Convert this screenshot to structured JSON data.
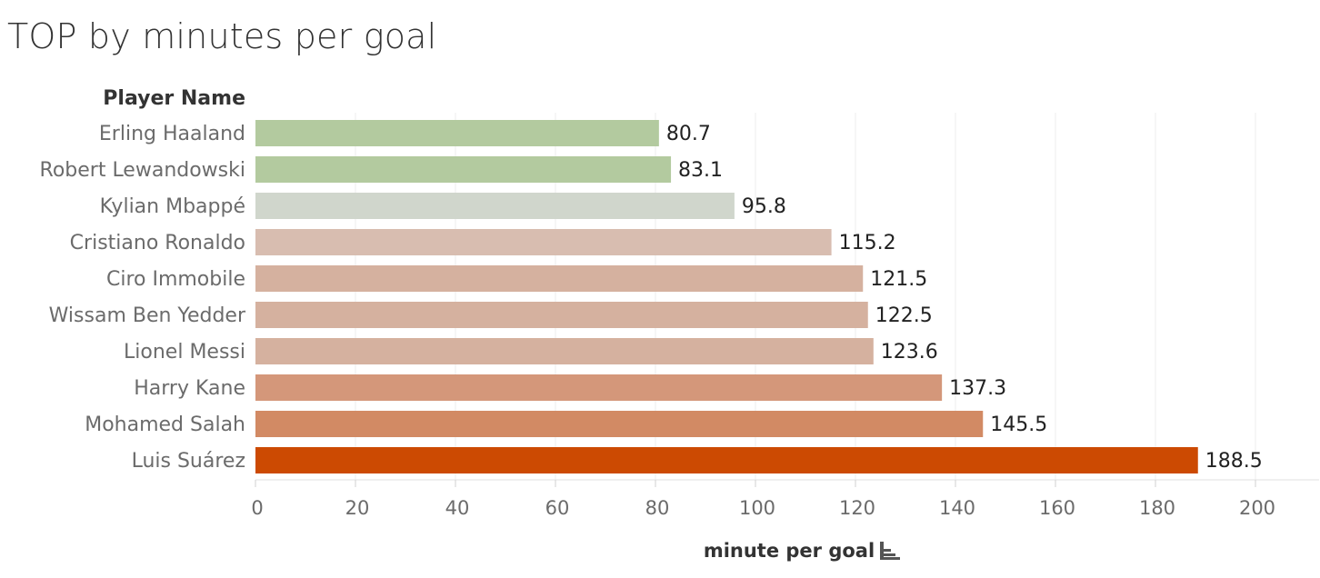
{
  "title": "TOP by minutes per goal",
  "chart_data": {
    "type": "bar",
    "orientation": "horizontal",
    "title": "TOP by minutes per goal",
    "ylabel": "Player Name",
    "xlabel": "minute per goal",
    "xlim": [
      0,
      200
    ],
    "xticks": [
      0,
      20,
      40,
      60,
      80,
      100,
      120,
      140,
      160,
      180,
      200
    ],
    "grid": true,
    "sort_icon": "sort-descending-icon",
    "categories": [
      "Erling Haaland",
      "Robert Lewandowski",
      "Kylian Mbappé",
      "Cristiano Ronaldo",
      "Ciro Immobile",
      "Wissam Ben Yedder",
      "Lionel Messi",
      "Harry Kane",
      "Mohamed Salah",
      "Luis Suárez"
    ],
    "values": [
      80.7,
      83.1,
      95.8,
      115.2,
      121.5,
      122.5,
      123.6,
      137.3,
      145.5,
      188.5
    ],
    "value_labels": [
      "80.7",
      "83.1",
      "95.8",
      "115.2",
      "121.5",
      "122.5",
      "123.6",
      "137.3",
      "145.5",
      "188.5"
    ],
    "colors": [
      "#b3ca9f",
      "#b3ca9f",
      "#d0d6cc",
      "#d8bdb0",
      "#d5b19f",
      "#d5b19f",
      "#d5b19f",
      "#d4977a",
      "#d28a64",
      "#cc4a02"
    ]
  }
}
